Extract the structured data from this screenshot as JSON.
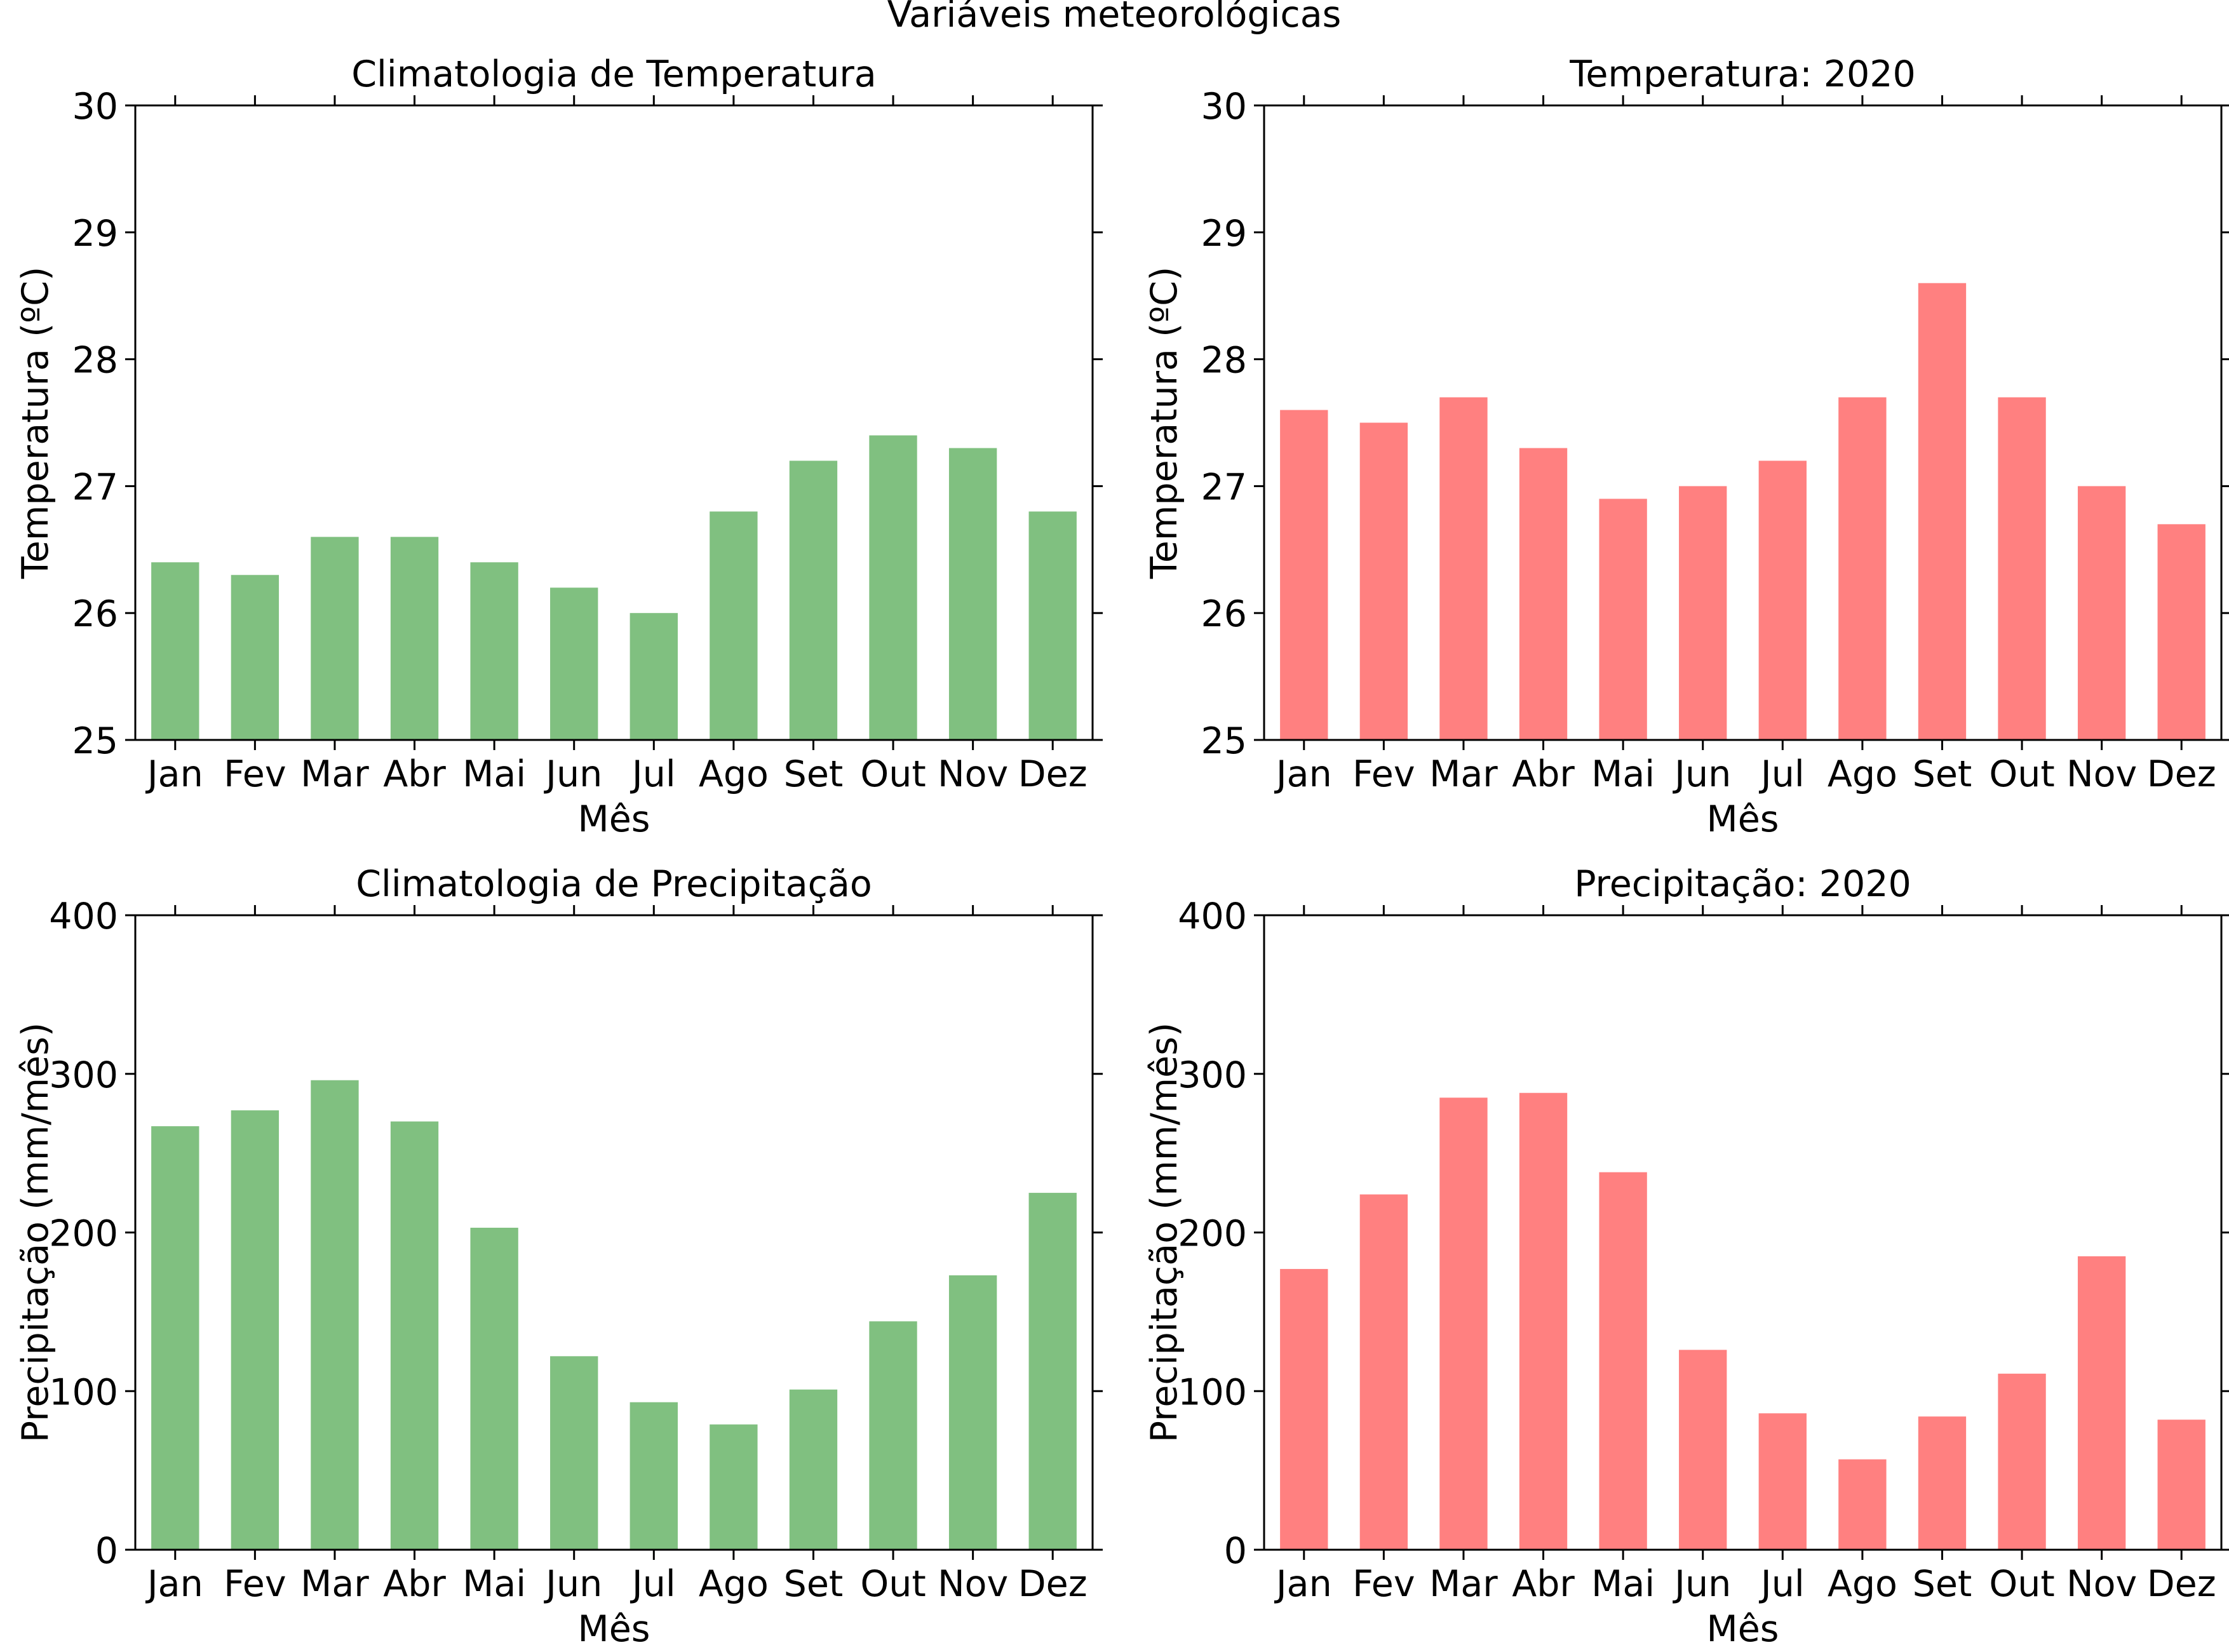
{
  "figure": {
    "suptitle": "Variáveis meteorológicas"
  },
  "chart_data": [
    {
      "type": "bar",
      "title": "Climatologia de Temperatura",
      "xlabel": "Mês",
      "ylabel": "Temperatura (ºC)",
      "categories": [
        "Jan",
        "Fev",
        "Mar",
        "Abr",
        "Mai",
        "Jun",
        "Jul",
        "Ago",
        "Set",
        "Out",
        "Nov",
        "Dez"
      ],
      "values": [
        26.4,
        26.3,
        26.6,
        26.6,
        26.4,
        26.2,
        26.0,
        26.8,
        27.2,
        27.4,
        27.3,
        26.8
      ],
      "ylim": [
        25,
        30
      ],
      "yticks": [
        25,
        26,
        27,
        28,
        29,
        30
      ],
      "color": "#80c080",
      "grid": false,
      "legend": "none"
    },
    {
      "type": "bar",
      "title": "Temperatura: 2020",
      "xlabel": "Mês",
      "ylabel": "Temperatura (ºC)",
      "categories": [
        "Jan",
        "Fev",
        "Mar",
        "Abr",
        "Mai",
        "Jun",
        "Jul",
        "Ago",
        "Set",
        "Out",
        "Nov",
        "Dez"
      ],
      "values": [
        27.6,
        27.5,
        27.7,
        27.3,
        26.9,
        27.0,
        27.2,
        27.7,
        28.6,
        27.7,
        27.0,
        26.7
      ],
      "ylim": [
        25,
        30
      ],
      "yticks": [
        25,
        26,
        27,
        28,
        29,
        30
      ],
      "color": "#ff8080",
      "grid": false,
      "legend": "none"
    },
    {
      "type": "bar",
      "title": "Climatologia de Precipitação",
      "xlabel": "Mês",
      "ylabel": "Precipitação (mm/mês)",
      "categories": [
        "Jan",
        "Fev",
        "Mar",
        "Abr",
        "Mai",
        "Jun",
        "Jul",
        "Ago",
        "Set",
        "Out",
        "Nov",
        "Dez"
      ],
      "values": [
        267,
        277,
        296,
        270,
        203,
        122,
        93,
        79,
        101,
        144,
        173,
        225
      ],
      "ylim": [
        0,
        400
      ],
      "yticks": [
        0,
        100,
        200,
        300,
        400
      ],
      "color": "#80c080",
      "grid": false,
      "legend": "none"
    },
    {
      "type": "bar",
      "title": "Precipitação: 2020",
      "xlabel": "Mês",
      "ylabel": "Precipitação (mm/mês)",
      "categories": [
        "Jan",
        "Fev",
        "Mar",
        "Abr",
        "Mai",
        "Jun",
        "Jul",
        "Ago",
        "Set",
        "Out",
        "Nov",
        "Dez"
      ],
      "values": [
        177,
        224,
        285,
        288,
        238,
        126,
        86,
        57,
        84,
        111,
        185,
        82
      ],
      "ylim": [
        0,
        400
      ],
      "yticks": [
        0,
        100,
        200,
        300,
        400
      ],
      "color": "#ff8080",
      "grid": false,
      "legend": "none"
    }
  ]
}
